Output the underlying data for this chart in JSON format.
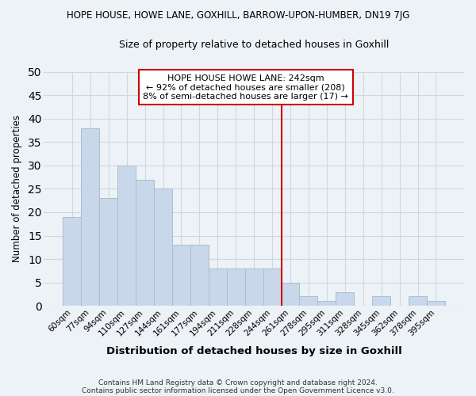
{
  "title": "HOPE HOUSE, HOWE LANE, GOXHILL, BARROW-UPON-HUMBER, DN19 7JG",
  "subtitle": "Size of property relative to detached houses in Goxhill",
  "xlabel": "Distribution of detached houses by size in Goxhill",
  "ylabel": "Number of detached properties",
  "bar_color": "#c8d8ea",
  "bar_edge_color": "#a8bece",
  "categories": [
    "60sqm",
    "77sqm",
    "94sqm",
    "110sqm",
    "127sqm",
    "144sqm",
    "161sqm",
    "177sqm",
    "194sqm",
    "211sqm",
    "228sqm",
    "244sqm",
    "261sqm",
    "278sqm",
    "295sqm",
    "311sqm",
    "328sqm",
    "345sqm",
    "362sqm",
    "378sqm",
    "395sqm"
  ],
  "values": [
    19,
    38,
    23,
    30,
    27,
    25,
    13,
    13,
    8,
    8,
    8,
    8,
    5,
    2,
    1,
    3,
    0,
    2,
    0,
    2,
    1
  ],
  "ylim": [
    0,
    50
  ],
  "yticks": [
    0,
    5,
    10,
    15,
    20,
    25,
    30,
    35,
    40,
    45,
    50
  ],
  "vline_index": 11,
  "vline_color": "#cc0000",
  "annotation_title": "HOPE HOUSE HOWE LANE: 242sqm",
  "annotation_line1": "← 92% of detached houses are smaller (208)",
  "annotation_line2": "8% of semi-detached houses are larger (17) →",
  "annotation_box_color": "#ffffff",
  "annotation_box_edge": "#cc0000",
  "grid_color": "#cdd8e2",
  "background_color": "#edf2f7",
  "footer1": "Contains HM Land Registry data © Crown copyright and database right 2024.",
  "footer2": "Contains public sector information licensed under the Open Government Licence v3.0."
}
